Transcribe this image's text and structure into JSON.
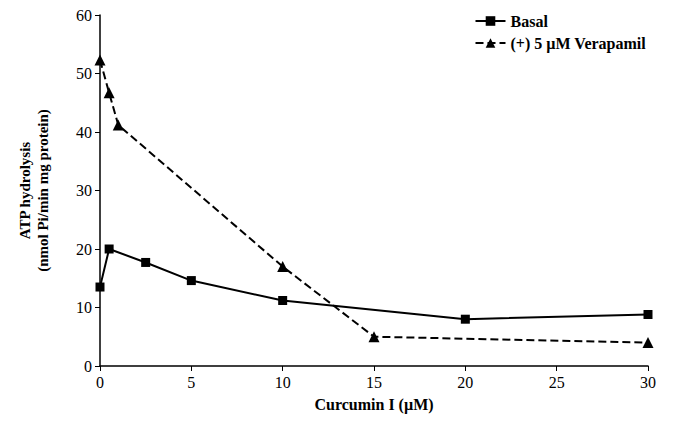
{
  "chart_data": {
    "type": "line",
    "xlabel": "Curcumin I (µM)",
    "ylabel": "ATP hydrolysis\n(nmol Pi/min mg protein)",
    "xlim": [
      0,
      30
    ],
    "xticks": [
      0,
      5,
      10,
      15,
      20,
      25,
      30
    ],
    "ylim": [
      0,
      60
    ],
    "yticks": [
      0,
      10,
      20,
      30,
      40,
      50,
      60
    ],
    "grid": false,
    "legend": "upper right",
    "series": [
      {
        "name": "Basal",
        "color": "#000000",
        "marker": "square",
        "line_style": "solid",
        "x": [
          0,
          0.5,
          2.5,
          5,
          10,
          20,
          30
        ],
        "values": [
          13.5,
          20,
          17.7,
          14.6,
          11.2,
          8,
          8.8
        ]
      },
      {
        "name": "(+) 5 µM Verapamil",
        "color": "#000000",
        "marker": "triangle",
        "line_style": "dashed",
        "x": [
          0,
          0.5,
          1,
          10,
          15,
          30
        ],
        "values": [
          52.3,
          46.7,
          41.2,
          17,
          5,
          4
        ]
      }
    ]
  }
}
